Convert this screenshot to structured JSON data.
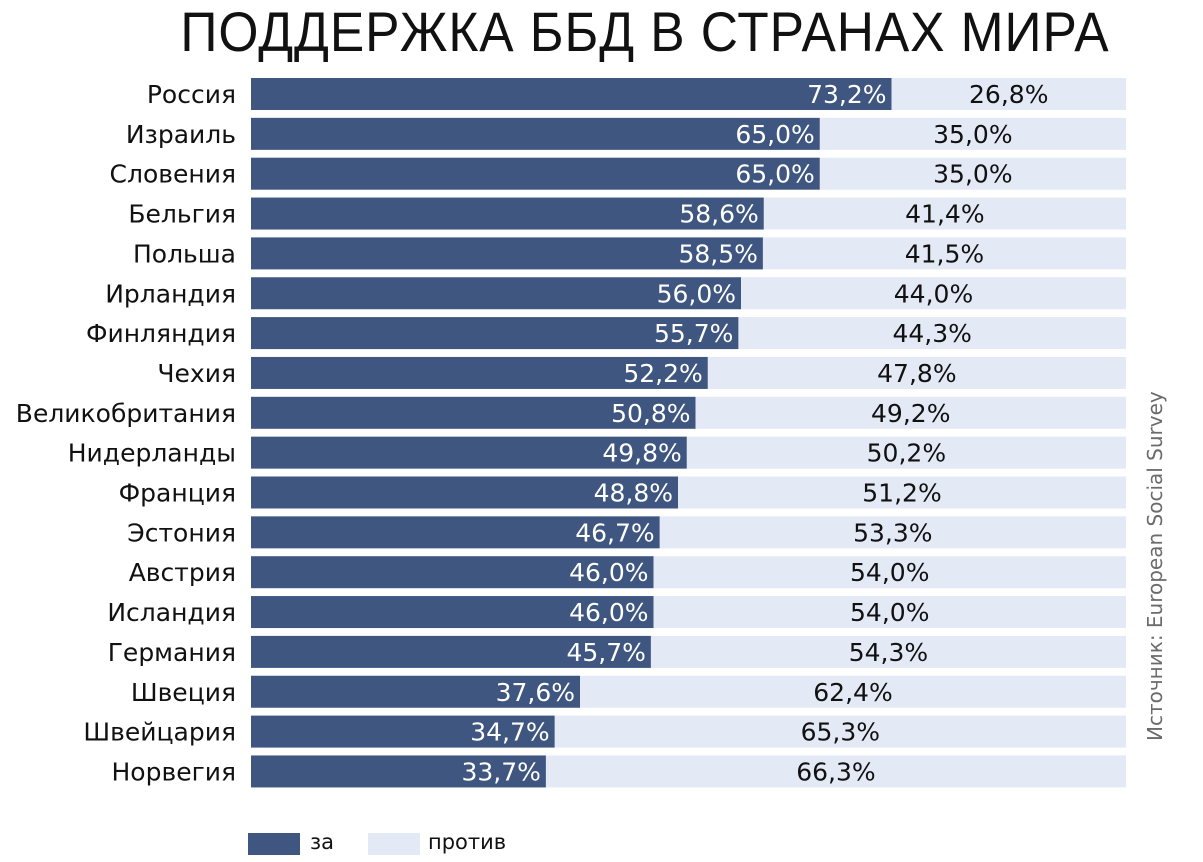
{
  "chart_data": {
    "type": "bar",
    "stacked": true,
    "orientation": "horizontal",
    "title": "ПОДДЕРЖКА ББД В СТРАНАХ МИРА",
    "source": "Источник: European Social Survey",
    "xlim": [
      0,
      100
    ],
    "unit": "%",
    "categories": [
      "Россия",
      "Израиль",
      "Словения",
      "Бельгия",
      "Польша",
      "Ирландия",
      "Финляндия",
      "Чехия",
      "Великобритания",
      "Нидерланды",
      "Франция",
      "Эстония",
      "Австрия",
      "Исландия",
      "Германия",
      "Швеция",
      "Швейцария",
      "Норвегия"
    ],
    "series": [
      {
        "name": "за",
        "color": "#3f5680",
        "values": [
          73.2,
          65.0,
          65.0,
          58.6,
          58.5,
          56.0,
          55.7,
          52.2,
          50.8,
          49.8,
          48.8,
          46.7,
          46.0,
          46.0,
          45.7,
          37.6,
          34.7,
          33.7
        ],
        "labels": [
          "73,2%",
          "65,0%",
          "65,0%",
          "58,6%",
          "58,5%",
          "56,0%",
          "55,7%",
          "52,2%",
          "50,8%",
          "49,8%",
          "48,8%",
          "46,7%",
          "46,0%",
          "46,0%",
          "45,7%",
          "37,6%",
          "34,7%",
          "33,7%"
        ]
      },
      {
        "name": "против",
        "color": "#e4e9f6",
        "values": [
          26.8,
          35.0,
          35.0,
          41.4,
          41.5,
          44.0,
          44.3,
          47.8,
          49.2,
          50.2,
          51.2,
          53.3,
          54.0,
          54.0,
          54.3,
          62.4,
          65.3,
          66.3
        ],
        "labels": [
          "26,8%",
          "35,0%",
          "35,0%",
          "41,4%",
          "41,5%",
          "44,0%",
          "44,3%",
          "47,8%",
          "49,2%",
          "50,2%",
          "51,2%",
          "53,3%",
          "54,0%",
          "54,0%",
          "54,3%",
          "62,4%",
          "65,3%",
          "66,3%"
        ]
      }
    ],
    "legend_position": "bottom-left",
    "grid": false
  }
}
